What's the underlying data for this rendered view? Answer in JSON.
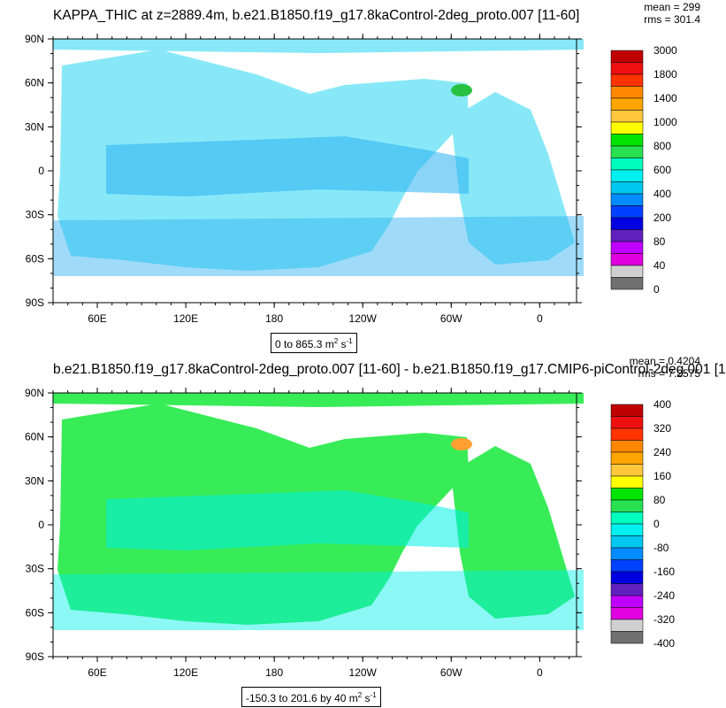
{
  "panels": [
    {
      "title": "KAPPA_THIC at z=2889.4m, b.e21.B1850.f19_g17.8kaControl-2deg_proto.007 [11-60]",
      "stats": {
        "mean": "mean = 299",
        "rms": "rms = 301.4"
      },
      "range_text": "0 to 865.3",
      "units": {
        "base": "m",
        "exp1": "2",
        "mid": " s",
        "exp2": "-1"
      },
      "colorbar": {
        "labels": [
          "3000",
          "1800",
          "1400",
          "1000",
          "800",
          "600",
          "400",
          "200",
          "80",
          "40",
          "0"
        ],
        "colors": [
          "#c00000",
          "#ee1010",
          "#ff3300",
          "#ff8800",
          "#ffa500",
          "#ffc83c",
          "#ffff00",
          "#00e400",
          "#28e050",
          "#00ffbf",
          "#00f0f0",
          "#00c8f0",
          "#008cff",
          "#0040ff",
          "#0000e0",
          "#6020c0",
          "#c000ff",
          "#e000e0",
          "#d0d0d0",
          "#707070"
        ]
      },
      "map": {
        "lat_ticks": [
          "90N",
          "60N",
          "30N",
          "0",
          "30S",
          "60S",
          "90S"
        ],
        "lon_ticks": [
          "60E",
          "120E",
          "180",
          "120W",
          "60W",
          "0"
        ],
        "ocean_color": "#88e8f8",
        "ocean_color_b": "#2ab0f0",
        "hotspot_color": "#28c040"
      }
    },
    {
      "title": "b.e21.B1850.f19_g17.8kaControl-2deg_proto.007 [11-60] - b.e21.B1850.f19_g17.CMIP6-piControl-2deg.001 [1",
      "stats": {
        "mean": "mean = 0.4204",
        "rms": "rms = 7.2575"
      },
      "range_text": "-150.3 to 201.6 by 40",
      "units": {
        "base": "m",
        "exp1": "2",
        "mid": " s",
        "exp2": "-1"
      },
      "colorbar": {
        "labels": [
          "400",
          "320",
          "240",
          "160",
          "80",
          "0",
          "-80",
          "-160",
          "-240",
          "-320",
          "-400"
        ],
        "colors": [
          "#c00000",
          "#ee1010",
          "#ff3300",
          "#ff8800",
          "#ffa500",
          "#ffc83c",
          "#ffff00",
          "#00e400",
          "#28e050",
          "#00ffbf",
          "#00f0f0",
          "#00c8f0",
          "#008cff",
          "#0040ff",
          "#0000e0",
          "#6020c0",
          "#c000ff",
          "#e000e0",
          "#d0d0d0",
          "#707070"
        ]
      },
      "map": {
        "lat_ticks": [
          "90N",
          "60N",
          "30N",
          "0",
          "30S",
          "60S",
          "90S"
        ],
        "lon_ticks": [
          "60E",
          "120E",
          "180",
          "120W",
          "60W",
          "0"
        ],
        "ocean_color": "#38ec58",
        "ocean_color_b": "#00f0e8",
        "hotspot_color": "#ffa030"
      }
    }
  ]
}
